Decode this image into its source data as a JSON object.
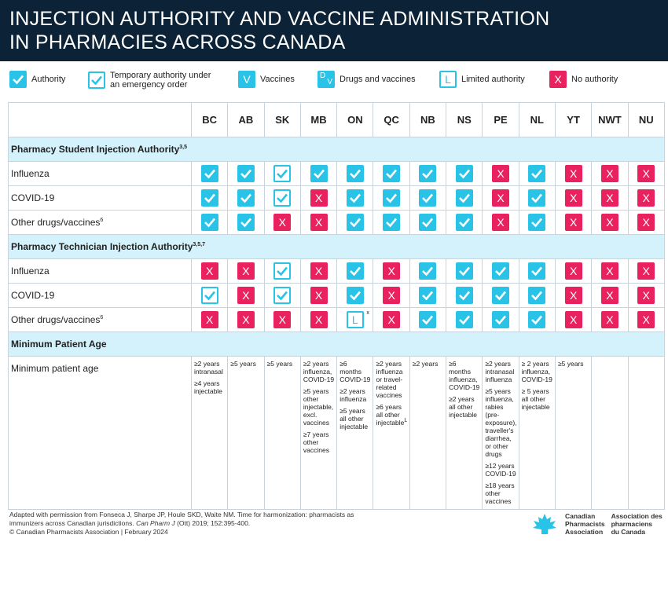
{
  "header": {
    "title": [
      "INJECTION AUTHORITY AND VACCINE ADMINISTRATION",
      "IN PHARMACIES ACROSS CANADA"
    ]
  },
  "legend": {
    "items": [
      {
        "icon": "check",
        "style": "filled",
        "color": "#28c3e7",
        "label": [
          "Authority"
        ]
      },
      {
        "icon": "check-outline",
        "style": "outline",
        "color": "#28c3e7",
        "label": [
          "Temporary authority under",
          "an emergency order"
        ]
      },
      {
        "icon": "V",
        "style": "filled",
        "color": "#28c3e7",
        "label": [
          "Vaccines"
        ]
      },
      {
        "icon": [
          "D",
          "V"
        ],
        "style": "filled",
        "color": "#28c3e7",
        "label": [
          "Drugs and vaccines"
        ]
      },
      {
        "icon": "L",
        "style": "outline",
        "color": "#28c3e7",
        "label": [
          "Limited authority"
        ]
      },
      {
        "icon": "X",
        "style": "filled",
        "color": "#e9215f",
        "label": [
          "No authority"
        ]
      }
    ]
  },
  "table": {
    "columns": [
      "BC",
      "AB",
      "SK",
      "MB",
      "ON",
      "QC",
      "NB",
      "NS",
      "PE",
      "NL",
      "YT",
      "NWT",
      "NU"
    ],
    "sections": [
      {
        "title": "Pharmacy Student Injection Authority",
        "note": "3,5",
        "rows": [
          {
            "label": "Influenza",
            "cells": [
              "check",
              "check",
              "check-outline",
              "check",
              "check",
              "check",
              "check",
              "check",
              "X",
              "check",
              "X",
              "X",
              "X"
            ]
          },
          {
            "label": "COVID-19",
            "cells": [
              "check",
              "check",
              "check-outline",
              "X",
              "check",
              "check",
              "check",
              "check",
              "X",
              "check",
              "X",
              "X",
              "X"
            ]
          },
          {
            "label": "Other drugs/vaccines",
            "note": "6",
            "cells": [
              "check",
              "check",
              "X",
              "X",
              "check",
              "check",
              "check",
              "check",
              "X",
              "check",
              "X",
              "X",
              "X"
            ]
          }
        ]
      },
      {
        "title": "Pharmacy Technician Injection Authority",
        "note": "3,5,7",
        "rows": [
          {
            "label": "Influenza",
            "cells": [
              "X",
              "X",
              "check-outline",
              "X",
              "check",
              "X",
              "check",
              "check",
              "check",
              "check",
              "X",
              "X",
              "X"
            ]
          },
          {
            "label": "COVID-19",
            "cells": [
              "check-outline",
              "X",
              "check-outline",
              "X",
              "check",
              "X",
              "check",
              "check",
              "check",
              "check",
              "X",
              "X",
              "X"
            ]
          },
          {
            "label": "Other drugs/vaccines",
            "note": "6",
            "cells": [
              "X",
              "X",
              "X",
              "X",
              {
                "icon": "L",
                "note": "x"
              },
              "X",
              "check",
              "check",
              "check",
              "check",
              "X",
              "X",
              "X"
            ]
          }
        ]
      },
      {
        "title": "Minimum Patient Age",
        "rows": [
          {
            "label": "Minimum patient age",
            "cells": [
              [
                "≥2 years intranasal",
                "≥4 years injectable"
              ],
              [
                "≥5 years"
              ],
              [
                "≥5 years"
              ],
              [
                "≥2 years influenza, COVID-19",
                "≥5 years other injectable, excl. vaccines",
                "≥7 years other vaccines"
              ],
              [
                "≥6 months COVID-19",
                "≥2 years influenza",
                "≥5 years all other injectable"
              ],
              [
                "≥2 years influenza or travel-related vaccines",
                {
                  "text": "≥6 years all other injectable",
                  "note": "L"
                }
              ],
              [
                "≥2 years"
              ],
              [
                "≥6 months influenza, COVID-19",
                "≥2 years all other injectable"
              ],
              [
                "≥2 years intranasal influenza",
                "≥5 years influenza, rabies (pre-exposure), traveller's diarrhea, or other drugs",
                "≥12 years COVID-19",
                "≥18 years other vaccines"
              ],
              [
                "≥ 2 years influenza, COVID-19",
                "≥ 5 years all other injectable"
              ],
              [
                "≥5 years"
              ],
              [],
              []
            ]
          }
        ]
      }
    ]
  },
  "footer": {
    "citation": [
      "Adapted with permission from Fonseca J, Sharpe JP, Houle SKD, Waite NM. Time for harmonization: pharmacists as immunizers across Canadian jurisdictions. ",
      "Can Pharm J",
      " (Ott) 2019; 152:395-400."
    ],
    "copyright": "© Canadian Pharmacists Association | February 2024"
  },
  "logo": {
    "english": [
      "Canadian",
      "Pharmacists",
      "Association"
    ],
    "french": [
      "Association des",
      "pharmaciens",
      "du Canada"
    ],
    "color": "#28c3e7"
  }
}
